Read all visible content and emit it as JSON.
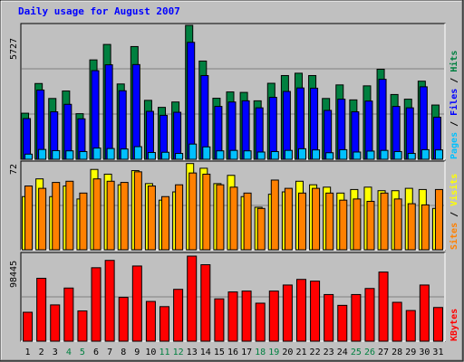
{
  "title": "Daily usage for August 2007",
  "chart_data": [
    {
      "type": "bar",
      "panel": "top",
      "categories": [
        "1",
        "2",
        "3",
        "4",
        "5",
        "6",
        "7",
        "8",
        "9",
        "10",
        "11",
        "12",
        "13",
        "14",
        "15",
        "16",
        "17",
        "18",
        "19",
        "20",
        "21",
        "22",
        "23",
        "24",
        "25",
        "26",
        "27",
        "28",
        "29",
        "30",
        "31"
      ],
      "weekend_days": [
        "4",
        "5",
        "11",
        "12",
        "18",
        "19",
        "25",
        "26"
      ],
      "y_tick_label": "5727",
      "ylim": [
        0,
        5727
      ],
      "legend": [
        {
          "label": "Pages",
          "color": "#00c0ff"
        },
        {
          "label": "Files",
          "color": "#0000ff"
        },
        {
          "label": "Hits",
          "color": "#008040"
        }
      ],
      "series": [
        {
          "name": "Hits",
          "values": [
            1970,
            3240,
            2600,
            2920,
            1950,
            4250,
            4910,
            3220,
            4820,
            2520,
            2220,
            2450,
            5727,
            4200,
            2610,
            2880,
            2860,
            2500,
            3250,
            3580,
            3680,
            3580,
            2600,
            3180,
            2540,
            3140,
            3850,
            2770,
            2570,
            3340,
            2320
          ]
        },
        {
          "name": "Files",
          "values": [
            1740,
            2960,
            2030,
            2350,
            1730,
            3790,
            4040,
            2930,
            4050,
            2050,
            1880,
            2010,
            5000,
            3580,
            2260,
            2450,
            2500,
            2200,
            2650,
            2900,
            3050,
            3040,
            2090,
            2570,
            2030,
            2490,
            3420,
            2260,
            2200,
            3100,
            1800
          ]
        },
        {
          "name": "Pages",
          "values": [
            220,
            420,
            370,
            360,
            330,
            480,
            460,
            440,
            540,
            290,
            300,
            250,
            650,
            530,
            360,
            380,
            360,
            310,
            330,
            380,
            450,
            400,
            280,
            410,
            310,
            350,
            380,
            330,
            250,
            410,
            400
          ]
        }
      ]
    },
    {
      "type": "bar",
      "panel": "middle",
      "categories": [
        "1",
        "2",
        "3",
        "4",
        "5",
        "6",
        "7",
        "8",
        "9",
        "10",
        "11",
        "12",
        "13",
        "14",
        "15",
        "16",
        "17",
        "18",
        "19",
        "20",
        "21",
        "22",
        "23",
        "24",
        "25",
        "26",
        "27",
        "28",
        "29",
        "30",
        "31"
      ],
      "y_tick_label": "72",
      "ylim": [
        0,
        72
      ],
      "legend": [
        {
          "label": "Sites",
          "color": "#ff8000"
        },
        {
          "label": "Visits",
          "color": "#ffff00"
        }
      ],
      "series": [
        {
          "name": "Visits",
          "values": [
            45,
            60,
            45,
            54,
            43,
            68,
            64,
            55,
            67,
            56,
            42,
            49,
            73,
            69,
            56,
            63,
            45,
            36,
            47,
            49,
            58,
            55,
            53,
            48,
            51,
            53,
            50,
            50,
            52,
            51,
            35
          ]
        },
        {
          "name": "Sites",
          "values": [
            54,
            52,
            57,
            58,
            48,
            60,
            58,
            57,
            66,
            54,
            45,
            55,
            65,
            64,
            55,
            53,
            48,
            35,
            59,
            52,
            48,
            52,
            48,
            42,
            43,
            41,
            48,
            43,
            39,
            38,
            51
          ]
        }
      ]
    },
    {
      "type": "bar",
      "panel": "bottom",
      "categories": [
        "1",
        "2",
        "3",
        "4",
        "5",
        "6",
        "7",
        "8",
        "9",
        "10",
        "11",
        "12",
        "13",
        "14",
        "15",
        "16",
        "17",
        "18",
        "19",
        "20",
        "21",
        "22",
        "23",
        "24",
        "25",
        "26",
        "27",
        "28",
        "29",
        "30",
        "31"
      ],
      "y_tick_label": "98445",
      "ylim": [
        0,
        98445
      ],
      "legend": [
        {
          "label": "KBytes",
          "color": "#ff0000"
        }
      ],
      "series": [
        {
          "name": "KBytes",
          "values": [
            33500,
            72800,
            42000,
            61500,
            35000,
            85000,
            93500,
            50700,
            87000,
            46000,
            40000,
            60000,
            98445,
            88500,
            49000,
            57000,
            58000,
            44000,
            58000,
            65000,
            71500,
            69500,
            54000,
            41500,
            54000,
            61000,
            80000,
            45000,
            35500,
            65000,
            39000
          ]
        }
      ]
    }
  ]
}
